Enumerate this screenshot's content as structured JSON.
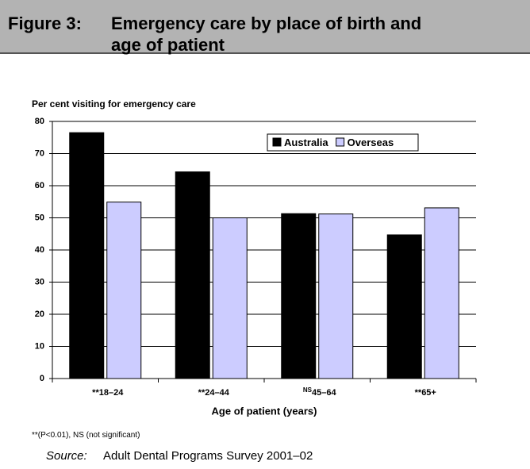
{
  "header": {
    "label": "Figure 3:",
    "title_lines": [
      "Emergency care by place of birth and",
      "age of patient"
    ]
  },
  "chart_data": {
    "type": "bar",
    "y_label": "Per cent visiting for emergency care",
    "x_label": "Age of patient (years)",
    "category_prefixes": [
      "**",
      "**",
      "NS",
      "**"
    ],
    "categories": [
      "18–24",
      "24–44",
      "45–64",
      "65+"
    ],
    "series": [
      {
        "name": "Australia",
        "color": "#000000",
        "values": [
          76.5,
          64.3,
          51.3,
          44.7
        ]
      },
      {
        "name": "Overseas",
        "color": "#ccccff",
        "values": [
          54.9,
          50.0,
          51.2,
          53.1
        ]
      }
    ],
    "ylim": [
      0,
      80
    ],
    "yticks": [
      0,
      10,
      20,
      30,
      40,
      50,
      60,
      70,
      80
    ],
    "grid": true,
    "legend": "top-right"
  },
  "footnote": "**(P<0.01), NS (not significant)",
  "source": {
    "label": "Source:",
    "text": "Adult Dental Programs Survey 2001–02"
  }
}
